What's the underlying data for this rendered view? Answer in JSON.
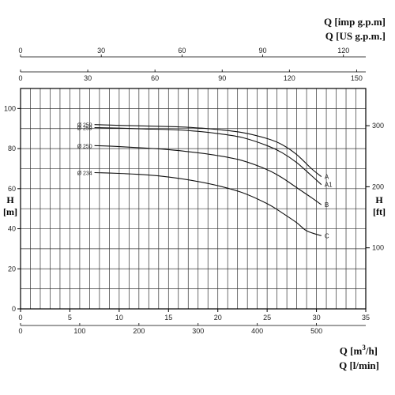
{
  "units": {
    "q_imp": "Q [imp g.p.m]",
    "q_us": "Q [US g.p.m.]",
    "q_m3h_prefix": "Q [m",
    "q_m3h_sup": "3",
    "q_m3h_suffix": "/h]",
    "q_lmin": "Q [l/min]",
    "h_left": "H",
    "h_left_unit": "[m]",
    "h_right": "H",
    "h_right_unit": "[ft]"
  },
  "chart_data": {
    "type": "line",
    "title": "",
    "grid": true,
    "x": {
      "label": "Q [m³/h]",
      "range": [
        0,
        35
      ],
      "ticks": [
        0,
        5,
        10,
        15,
        20,
        25,
        30,
        35
      ],
      "tick_labels": [
        "0",
        "5",
        "10",
        "15",
        "20",
        "25",
        "30",
        "35"
      ]
    },
    "y": {
      "label": "H [m]",
      "range": [
        0,
        110
      ],
      "ticks": [
        0,
        20,
        40,
        60,
        80,
        100
      ],
      "tick_labels": [
        "0",
        "20",
        "40",
        "60",
        "80",
        "100"
      ]
    },
    "secondary_axes": {
      "x_lmin": {
        "label": "Q [l/min]",
        "range": [
          0,
          583.3
        ],
        "ticks": [
          0,
          100,
          200,
          300,
          400,
          500
        ],
        "tick_labels": [
          "0",
          "100",
          "200",
          "300",
          "400",
          "500"
        ]
      },
      "x_us_gpm": {
        "label": "Q [US g.p.m.]",
        "range": [
          0,
          154.1
        ],
        "ticks": [
          0,
          30,
          60,
          90,
          120,
          150
        ],
        "tick_labels": [
          "0",
          "30",
          "60",
          "90",
          "120",
          "150"
        ]
      },
      "x_imp_gpm": {
        "label": "Q [imp g.p.m]",
        "range": [
          0,
          128.3
        ],
        "ticks": [
          0,
          30,
          60,
          90,
          120
        ],
        "tick_labels": [
          "0",
          "30",
          "60",
          "90",
          "120"
        ]
      },
      "y_ft": {
        "label": "H [ft]",
        "range": [
          0,
          360.9
        ],
        "ticks": [
          100,
          200,
          300
        ],
        "tick_labels": [
          "100",
          "200",
          "300"
        ]
      }
    },
    "series": [
      {
        "name": "A",
        "diameter_label": "Ø 259",
        "x": [
          7.5,
          10,
          12.5,
          15,
          17.5,
          20,
          22.5,
          25,
          26.5,
          28,
          29.5,
          30.5
        ],
        "y": [
          92,
          91.6,
          91.3,
          91,
          90.5,
          89.5,
          88,
          85,
          82,
          77,
          70,
          66
        ]
      },
      {
        "name": "A1",
        "diameter_label": "Ø 259",
        "x": [
          7.5,
          10,
          12.5,
          15,
          17.5,
          20,
          22.5,
          25,
          26.5,
          28,
          29.5,
          30.5
        ],
        "y": [
          90.5,
          90.2,
          89.8,
          89.5,
          88.8,
          87.5,
          85.5,
          81.5,
          78,
          73,
          66.5,
          62
        ]
      },
      {
        "name": "B",
        "diameter_label": "Ø 250",
        "x": [
          7.5,
          10,
          12.5,
          15,
          17.5,
          20,
          22.5,
          25,
          26.5,
          28,
          29.5,
          30.5
        ],
        "y": [
          81.5,
          81,
          80.3,
          79.5,
          78.2,
          76.5,
          74,
          69.5,
          65.5,
          60.5,
          55.5,
          52
        ]
      },
      {
        "name": "C",
        "diameter_label": "Ø 234",
        "x": [
          7.5,
          10,
          12.5,
          15,
          17.5,
          20,
          22.5,
          25,
          26.5,
          28,
          29,
          30.5
        ],
        "y": [
          68,
          67.6,
          67,
          65.8,
          64,
          61.5,
          58,
          52.5,
          48,
          43,
          39,
          36.5
        ]
      }
    ]
  }
}
